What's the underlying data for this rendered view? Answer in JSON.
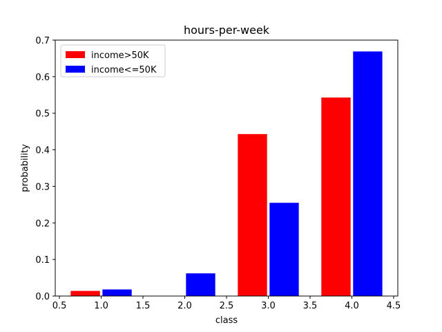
{
  "chart_data": {
    "type": "bar",
    "title": "hours-per-week",
    "xlabel": "class",
    "ylabel": "probability",
    "xlim": [
      0.45,
      4.55
    ],
    "ylim": [
      0,
      0.7
    ],
    "xticks": [
      0.5,
      1.0,
      1.5,
      2.0,
      2.5,
      3.0,
      3.5,
      4.0,
      4.5
    ],
    "xtick_labels": [
      "0.5",
      "1.0",
      "1.5",
      "2.0",
      "2.5",
      "3.0",
      "3.5",
      "4.0",
      "4.5"
    ],
    "yticks": [
      0.0,
      0.1,
      0.2,
      0.3,
      0.4,
      0.5,
      0.6,
      0.7
    ],
    "ytick_labels": [
      "0.0",
      "0.1",
      "0.2",
      "0.3",
      "0.4",
      "0.5",
      "0.6",
      "0.7"
    ],
    "grid": false,
    "legend_position": "top-left",
    "bar_width": 0.35,
    "series": [
      {
        "name": "income>50K",
        "color": "#ff0000",
        "x": [
          0.81,
          1.81,
          2.81,
          3.81
        ],
        "values": [
          0.014,
          0.0,
          0.443,
          0.543
        ]
      },
      {
        "name": "income<=50K",
        "color": "#0000ff",
        "x": [
          1.19,
          2.19,
          3.19,
          4.19
        ],
        "values": [
          0.018,
          0.062,
          0.255,
          0.669
        ]
      }
    ]
  }
}
